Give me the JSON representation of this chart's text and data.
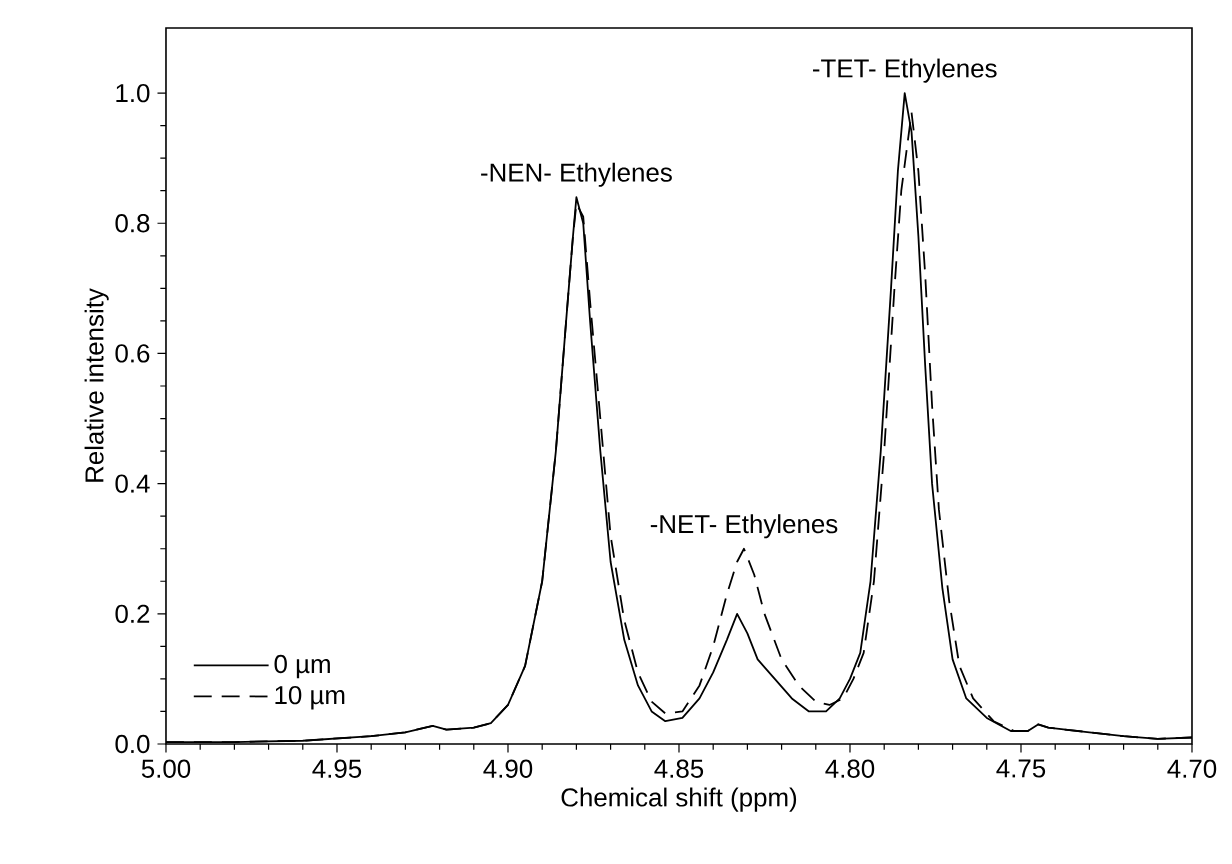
{
  "chart_data": {
    "type": "line",
    "xlabel": "Chemical shift (ppm)",
    "ylabel": "Relative intensity",
    "xlim": [
      5.0,
      4.7
    ],
    "ylim": [
      0,
      1.1
    ],
    "xticks": [
      {
        "value": 5.0,
        "label": "5.00"
      },
      {
        "value": 4.95,
        "label": "4.95"
      },
      {
        "value": 4.9,
        "label": "4.90"
      },
      {
        "value": 4.85,
        "label": "4.85"
      },
      {
        "value": 4.8,
        "label": "4.80"
      },
      {
        "value": 4.75,
        "label": "4.75"
      },
      {
        "value": 4.7,
        "label": "4.70"
      }
    ],
    "yticks": [
      {
        "value": 0,
        "label": "0.0"
      },
      {
        "value": 0.2,
        "label": "0.2"
      },
      {
        "value": 0.4,
        "label": "0.4"
      },
      {
        "value": 0.6,
        "label": "0.6"
      },
      {
        "value": 0.8,
        "label": "0.8"
      },
      {
        "value": 1.0,
        "label": "1.0"
      }
    ],
    "legend": "bottom left",
    "marker": "none",
    "grid": false,
    "annotations": [
      {
        "text": "-NEN- Ethylenes",
        "x": 4.88,
        "y": 0.84
      },
      {
        "text": "-NET- Ethylenes",
        "x": 4.831,
        "y": 0.3
      },
      {
        "text": "-TET- Ethylenes",
        "x": 4.784,
        "y": 1.0
      }
    ],
    "series": [
      {
        "name": "0 µm",
        "color": "#000000",
        "line_style": "solid",
        "x": [
          5.0,
          4.98,
          4.96,
          4.94,
          4.93,
          4.922,
          4.918,
          4.91,
          4.905,
          4.9,
          4.895,
          4.89,
          4.886,
          4.883,
          4.881,
          4.88,
          4.878,
          4.876,
          4.873,
          4.87,
          4.866,
          4.862,
          4.858,
          4.854,
          4.849,
          4.844,
          4.84,
          4.836,
          4.833,
          4.83,
          4.827,
          4.822,
          4.817,
          4.812,
          4.807,
          4.803,
          4.8,
          4.797,
          4.794,
          4.791,
          4.788,
          4.786,
          4.784,
          4.782,
          4.78,
          4.778,
          4.776,
          4.773,
          4.77,
          4.766,
          4.76,
          4.753,
          4.748,
          4.745,
          4.742,
          4.73,
          4.72,
          4.71,
          4.7
        ],
        "values": [
          0.003,
          0.003,
          0.005,
          0.012,
          0.018,
          0.028,
          0.022,
          0.025,
          0.032,
          0.06,
          0.12,
          0.25,
          0.45,
          0.65,
          0.78,
          0.84,
          0.8,
          0.65,
          0.45,
          0.28,
          0.16,
          0.09,
          0.05,
          0.035,
          0.04,
          0.07,
          0.11,
          0.16,
          0.2,
          0.17,
          0.13,
          0.1,
          0.07,
          0.05,
          0.05,
          0.07,
          0.1,
          0.14,
          0.25,
          0.45,
          0.7,
          0.88,
          1.0,
          0.94,
          0.78,
          0.58,
          0.4,
          0.24,
          0.13,
          0.07,
          0.04,
          0.02,
          0.02,
          0.03,
          0.025,
          0.018,
          0.012,
          0.008,
          0.01
        ]
      },
      {
        "name": "10 µm",
        "color": "#000000",
        "line_style": "dashed",
        "x": [
          5.0,
          4.98,
          4.96,
          4.94,
          4.93,
          4.922,
          4.918,
          4.91,
          4.905,
          4.9,
          4.895,
          4.89,
          4.886,
          4.883,
          4.881,
          4.88,
          4.878,
          4.876,
          4.873,
          4.87,
          4.866,
          4.862,
          4.858,
          4.854,
          4.849,
          4.844,
          4.84,
          4.836,
          4.833,
          4.831,
          4.828,
          4.825,
          4.82,
          4.815,
          4.81,
          4.806,
          4.802,
          4.799,
          4.796,
          4.793,
          4.79,
          4.787,
          4.785,
          4.782,
          4.78,
          4.778,
          4.776,
          4.774,
          4.771,
          4.768,
          4.764,
          4.758,
          4.752,
          4.748,
          4.745,
          4.742,
          4.73,
          4.72,
          4.71,
          4.7
        ],
        "values": [
          0.003,
          0.003,
          0.005,
          0.012,
          0.018,
          0.028,
          0.022,
          0.025,
          0.032,
          0.06,
          0.12,
          0.25,
          0.45,
          0.65,
          0.78,
          0.83,
          0.81,
          0.68,
          0.5,
          0.32,
          0.19,
          0.11,
          0.065,
          0.047,
          0.05,
          0.09,
          0.15,
          0.23,
          0.28,
          0.3,
          0.26,
          0.2,
          0.13,
          0.09,
          0.065,
          0.06,
          0.07,
          0.1,
          0.14,
          0.25,
          0.45,
          0.7,
          0.85,
          0.97,
          0.88,
          0.72,
          0.52,
          0.36,
          0.22,
          0.12,
          0.07,
          0.035,
          0.02,
          0.02,
          0.03,
          0.025,
          0.018,
          0.012,
          0.008,
          0.01
        ]
      }
    ]
  }
}
